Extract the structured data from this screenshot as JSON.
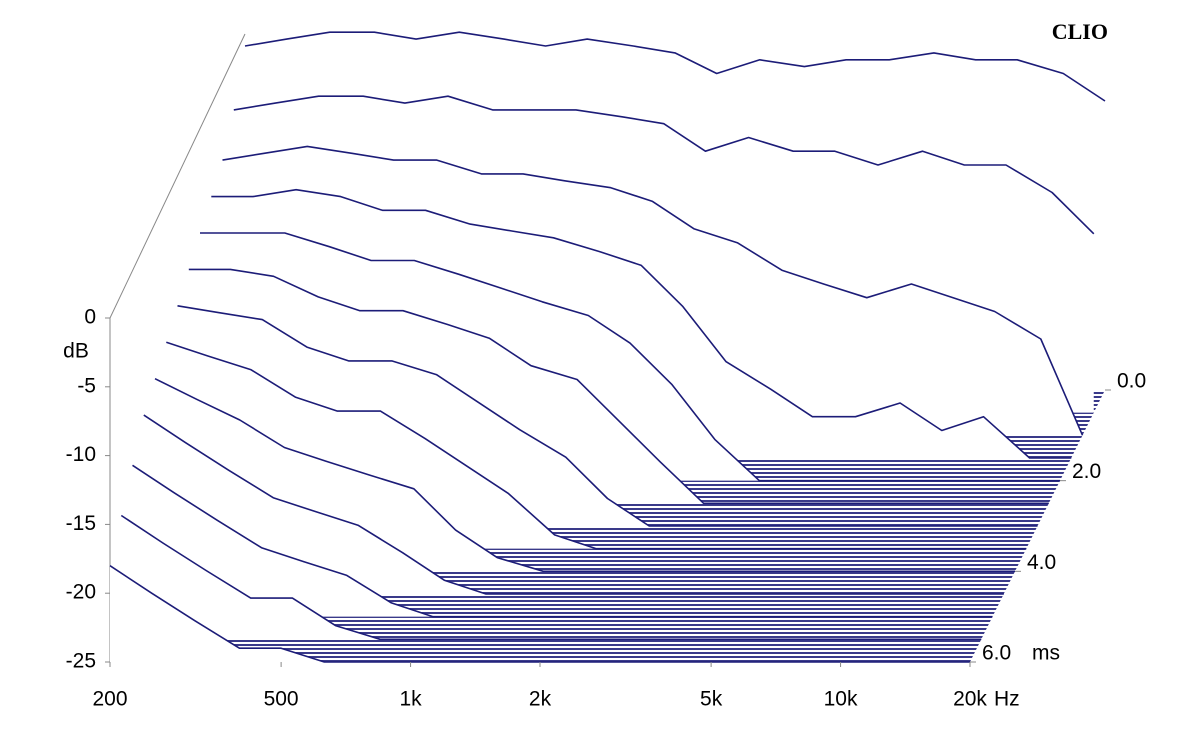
{
  "chart_data": {
    "type": "waterfall",
    "watermark": "CLIO",
    "y_label": "dB",
    "x_unit": "Hz",
    "z_unit": "ms",
    "log_x": true,
    "color": "#1c1c78",
    "x": [
      200,
      250,
      315,
      400,
      500,
      630,
      800,
      1000,
      1250,
      1600,
      2000,
      2500,
      3150,
      4000,
      5000,
      6300,
      8000,
      10000,
      12500,
      16000,
      20000
    ],
    "xlim": [
      200,
      20000
    ],
    "xticks": [
      200,
      500,
      {
        "value": 1000,
        "label": "1k"
      },
      {
        "value": 2000,
        "label": "2k"
      },
      {
        "value": 5000,
        "label": "5k"
      },
      {
        "value": 10000,
        "label": "10k"
      },
      {
        "value": 20000,
        "label": "20k"
      }
    ],
    "ylim": [
      -25,
      0
    ],
    "yticks": [
      0,
      -5,
      -10,
      -15,
      -20,
      -25
    ],
    "z": [
      0,
      0.5,
      1,
      1.5,
      2,
      2.5,
      3,
      3.5,
      4,
      4.5,
      5,
      5.5,
      6
    ],
    "zlim": [
      0,
      6
    ],
    "zticks": [
      {
        "value": 0,
        "label": "0.0"
      },
      {
        "value": 2,
        "label": "2.0"
      },
      {
        "value": 4,
        "label": "4.0"
      },
      {
        "value": 6,
        "label": "6.0"
      }
    ],
    "values": [
      [
        0,
        0.5,
        1,
        1,
        0.5,
        1,
        0.5,
        0,
        0.5,
        0,
        -0.5,
        -2,
        -1,
        -1.5,
        -1,
        -1,
        -0.5,
        -1,
        -1,
        -2,
        -4
      ],
      [
        -3,
        -2.5,
        -2,
        -2,
        -2.5,
        -2,
        -3,
        -3,
        -3,
        -3.5,
        -4,
        -6,
        -5,
        -6,
        -6,
        -7,
        -6,
        -7,
        -7,
        -9,
        -12
      ],
      [
        -5,
        -4.5,
        -4,
        -4.5,
        -5,
        -5,
        -6,
        -6,
        -6.5,
        -7,
        -8,
        -10,
        -11,
        -13,
        -14,
        -15,
        -14,
        -15,
        -16,
        -18,
        -25
      ],
      [
        -6,
        -6,
        -5.5,
        -6,
        -7,
        -7,
        -8,
        -8.5,
        -9,
        -10,
        -11,
        -14,
        -18,
        -20,
        -22,
        -22,
        -21,
        -23,
        -22,
        -25,
        -25
      ],
      [
        -7,
        -7,
        -7,
        -8,
        -9,
        -9,
        -10,
        -11,
        -12,
        -13,
        -15,
        -18,
        -22,
        -25,
        -25,
        -25,
        -25,
        -25,
        -25,
        -25,
        -25
      ],
      [
        -8,
        -8,
        -8.5,
        -10,
        -11,
        -11,
        -12,
        -13,
        -15,
        -16,
        -19,
        -22,
        -25,
        -25,
        -25,
        -25,
        -25,
        -25,
        -25,
        -25,
        -25
      ],
      [
        -9,
        -9.5,
        -10,
        -12,
        -13,
        -13,
        -14,
        -16,
        -18,
        -20,
        -23,
        -25,
        -25,
        -25,
        -25,
        -25,
        -25,
        -25,
        -25,
        -25,
        -25
      ],
      [
        -10,
        -11,
        -12,
        -14,
        -15,
        -15,
        -17,
        -19,
        -21,
        -24,
        -25,
        -25,
        -25,
        -25,
        -25,
        -25,
        -25,
        -25,
        -25,
        -25,
        -25
      ],
      [
        -11,
        -12.5,
        -14,
        -16,
        -17,
        -18,
        -19,
        -22,
        -24,
        -25,
        -25,
        -25,
        -25,
        -25,
        -25,
        -25,
        -25,
        -25,
        -25,
        -25,
        -25
      ],
      [
        -12,
        -14,
        -16,
        -18,
        -19,
        -20,
        -22,
        -24,
        -25,
        -25,
        -25,
        -25,
        -25,
        -25,
        -25,
        -25,
        -25,
        -25,
        -25,
        -25,
        -25
      ],
      [
        -14,
        -16,
        -18,
        -20,
        -21,
        -22,
        -24,
        -25,
        -25,
        -25,
        -25,
        -25,
        -25,
        -25,
        -25,
        -25,
        -25,
        -25,
        -25,
        -25,
        -25
      ],
      [
        -16,
        -18,
        -20,
        -22,
        -22,
        -24,
        -25,
        -25,
        -25,
        -25,
        -25,
        -25,
        -25,
        -25,
        -25,
        -25,
        -25,
        -25,
        -25,
        -25,
        -25
      ],
      [
        -18,
        -20,
        -22,
        -24,
        -24,
        -25,
        -25,
        -25,
        -25,
        -25,
        -25,
        -25,
        -25,
        -25,
        -25,
        -25,
        -25,
        -25,
        -25,
        -25,
        -25
      ]
    ]
  }
}
